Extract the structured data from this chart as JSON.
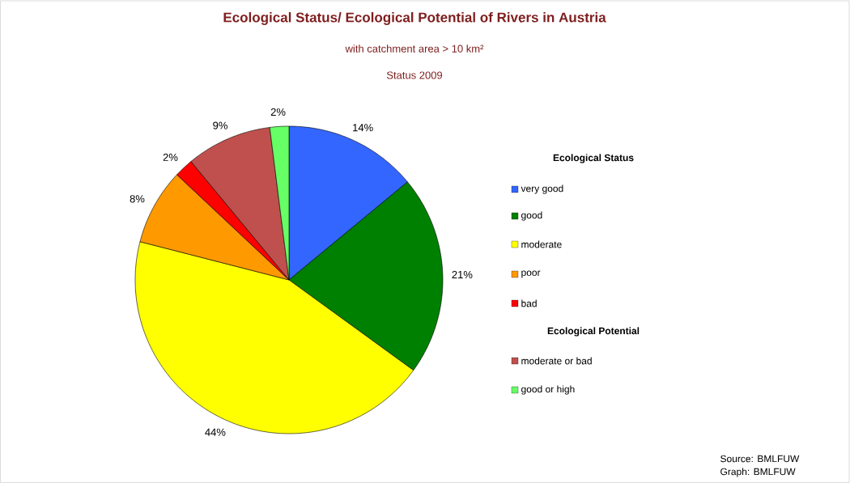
{
  "chart_data": {
    "type": "pie",
    "title": "Ecological Status/ Ecological Potential of Rivers in Austria",
    "subtitle": "with catchment area > 10 km²",
    "categories": [
      "very good",
      "good",
      "moderate",
      "poor",
      "bad",
      "moderate or bad",
      "good or high"
    ],
    "values": [
      14,
      21,
      44,
      8,
      2,
      9,
      2
    ],
    "colors": [
      "#3366ff",
      "#008000",
      "#ffff00",
      "#ff9900",
      "#ff0000",
      "#c0504d",
      "#66ff66"
    ],
    "value_labels": [
      "14%",
      "21%",
      "44%",
      "8%",
      "2%",
      "9%",
      "2%"
    ],
    "legend": "right",
    "legend_title": "Ecological Status",
    "annotations": [
      "Ecological Potential",
      "Source:  BMLFUW",
      "Graph:  BMLFUW",
      "Status 2009"
    ]
  }
}
